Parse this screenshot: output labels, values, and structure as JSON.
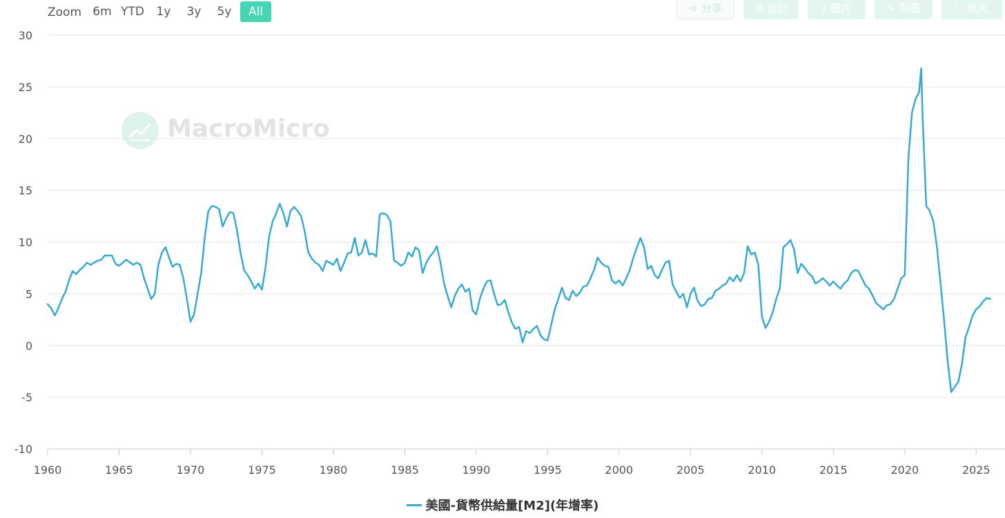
{
  "zoom": {
    "label": "Zoom",
    "buttons": [
      {
        "label": "6m",
        "active": false
      },
      {
        "label": "YTD",
        "active": false
      },
      {
        "label": "1y",
        "active": false
      },
      {
        "label": "3y",
        "active": false
      },
      {
        "label": "5y",
        "active": false
      },
      {
        "label": "All",
        "active": true
      }
    ]
  },
  "toolbar": {
    "share": {
      "label": "分享",
      "icon": "share-icon"
    },
    "customize": {
      "label": "自訂",
      "icon": "gear-icon"
    },
    "image": {
      "label": "圖片",
      "icon": "download-icon"
    },
    "draw": {
      "label": "製圖",
      "icon": "pencil-icon"
    },
    "expand": {
      "label": "放大",
      "icon": "expand-icon"
    }
  },
  "watermark": {
    "text": "MacroMicro"
  },
  "colors": {
    "series": "#36a9d3",
    "accent": "#47d6b3",
    "grid": "#e6e6e6"
  },
  "chart_data": {
    "type": "line",
    "title": "",
    "xlabel": "",
    "ylabel": "",
    "ylim": [
      -10,
      30
    ],
    "xlim": [
      1960,
      2026
    ],
    "yticks": [
      -10,
      -5,
      0,
      5,
      10,
      15,
      20,
      25,
      30
    ],
    "xticks": [
      1960,
      1965,
      1970,
      1975,
      1980,
      1985,
      1990,
      1995,
      2000,
      2005,
      2010,
      2015,
      2020,
      2025
    ],
    "grid": true,
    "legend": "bottom-center",
    "series": [
      {
        "name": "美國-貨幣供給量[M2](年增率)",
        "points": [
          [
            1960.0,
            4.0
          ],
          [
            1960.25,
            3.6
          ],
          [
            1960.5,
            2.9
          ],
          [
            1960.75,
            3.6
          ],
          [
            1961.0,
            4.5
          ],
          [
            1961.25,
            5.2
          ],
          [
            1961.5,
            6.3
          ],
          [
            1961.75,
            7.2
          ],
          [
            1962.0,
            6.9
          ],
          [
            1962.25,
            7.3
          ],
          [
            1962.5,
            7.6
          ],
          [
            1962.75,
            8.0
          ],
          [
            1963.0,
            7.8
          ],
          [
            1963.5,
            8.2
          ],
          [
            1963.75,
            8.3
          ],
          [
            1964.0,
            8.7
          ],
          [
            1964.5,
            8.7
          ],
          [
            1964.75,
            7.9
          ],
          [
            1965.0,
            7.7
          ],
          [
            1965.5,
            8.3
          ],
          [
            1966.0,
            7.8
          ],
          [
            1966.25,
            8.0
          ],
          [
            1966.5,
            7.8
          ],
          [
            1966.75,
            6.5
          ],
          [
            1967.0,
            5.5
          ],
          [
            1967.25,
            4.5
          ],
          [
            1967.5,
            5.0
          ],
          [
            1967.75,
            7.8
          ],
          [
            1968.0,
            9.0
          ],
          [
            1968.25,
            9.5
          ],
          [
            1968.5,
            8.5
          ],
          [
            1968.75,
            7.6
          ],
          [
            1969.0,
            7.9
          ],
          [
            1969.25,
            7.8
          ],
          [
            1969.5,
            6.5
          ],
          [
            1969.75,
            4.5
          ],
          [
            1970.0,
            2.3
          ],
          [
            1970.25,
            3.0
          ],
          [
            1970.5,
            5.0
          ],
          [
            1970.75,
            7.0
          ],
          [
            1971.0,
            10.5
          ],
          [
            1971.25,
            13.0
          ],
          [
            1971.5,
            13.5
          ],
          [
            1971.75,
            13.4
          ],
          [
            1972.0,
            13.2
          ],
          [
            1972.25,
            11.5
          ],
          [
            1972.5,
            12.3
          ],
          [
            1972.75,
            12.9
          ],
          [
            1973.0,
            12.8
          ],
          [
            1973.25,
            11.2
          ],
          [
            1973.5,
            9.0
          ],
          [
            1973.75,
            7.3
          ],
          [
            1974.0,
            6.8
          ],
          [
            1974.25,
            6.2
          ],
          [
            1974.5,
            5.5
          ],
          [
            1974.75,
            6.0
          ],
          [
            1975.0,
            5.4
          ],
          [
            1975.25,
            7.5
          ],
          [
            1975.5,
            10.5
          ],
          [
            1975.75,
            12.0
          ],
          [
            1976.0,
            12.8
          ],
          [
            1976.25,
            13.7
          ],
          [
            1976.5,
            12.8
          ],
          [
            1976.75,
            11.5
          ],
          [
            1977.0,
            13.0
          ],
          [
            1977.25,
            13.4
          ],
          [
            1977.5,
            13.0
          ],
          [
            1977.75,
            12.5
          ],
          [
            1978.0,
            11.0
          ],
          [
            1978.25,
            9.0
          ],
          [
            1978.5,
            8.4
          ],
          [
            1978.75,
            8.0
          ],
          [
            1979.0,
            7.8
          ],
          [
            1979.25,
            7.2
          ],
          [
            1979.5,
            8.2
          ],
          [
            1979.75,
            8.0
          ],
          [
            1980.0,
            7.8
          ],
          [
            1980.25,
            8.4
          ],
          [
            1980.5,
            7.2
          ],
          [
            1980.75,
            8.0
          ],
          [
            1981.0,
            8.9
          ],
          [
            1981.25,
            9.0
          ],
          [
            1981.5,
            10.4
          ],
          [
            1981.75,
            8.7
          ],
          [
            1982.0,
            9.0
          ],
          [
            1982.25,
            10.2
          ],
          [
            1982.5,
            8.8
          ],
          [
            1982.75,
            8.9
          ],
          [
            1983.0,
            8.6
          ],
          [
            1983.25,
            12.7
          ],
          [
            1983.5,
            12.8
          ],
          [
            1983.75,
            12.6
          ],
          [
            1984.0,
            12.0
          ],
          [
            1984.25,
            8.2
          ],
          [
            1984.5,
            8.0
          ],
          [
            1984.75,
            7.7
          ],
          [
            1985.0,
            8.0
          ],
          [
            1985.25,
            9.0
          ],
          [
            1985.5,
            8.6
          ],
          [
            1985.75,
            9.5
          ],
          [
            1986.0,
            9.2
          ],
          [
            1986.25,
            7.0
          ],
          [
            1986.5,
            8.0
          ],
          [
            1986.75,
            8.6
          ],
          [
            1987.0,
            9.0
          ],
          [
            1987.25,
            9.6
          ],
          [
            1987.5,
            8.0
          ],
          [
            1987.75,
            6.0
          ],
          [
            1988.0,
            4.8
          ],
          [
            1988.25,
            3.7
          ],
          [
            1988.5,
            4.8
          ],
          [
            1988.75,
            5.5
          ],
          [
            1989.0,
            5.9
          ],
          [
            1989.25,
            5.2
          ],
          [
            1989.5,
            5.5
          ],
          [
            1989.75,
            3.4
          ],
          [
            1990.0,
            3.0
          ],
          [
            1990.25,
            4.5
          ],
          [
            1990.5,
            5.5
          ],
          [
            1990.75,
            6.2
          ],
          [
            1991.0,
            6.3
          ],
          [
            1991.25,
            5.0
          ],
          [
            1991.5,
            3.9
          ],
          [
            1991.75,
            4.0
          ],
          [
            1992.0,
            4.4
          ],
          [
            1992.25,
            3.2
          ],
          [
            1992.5,
            2.2
          ],
          [
            1992.75,
            1.6
          ],
          [
            1993.0,
            1.8
          ],
          [
            1993.25,
            0.3
          ],
          [
            1993.5,
            1.4
          ],
          [
            1993.75,
            1.2
          ],
          [
            1994.0,
            1.6
          ],
          [
            1994.25,
            1.9
          ],
          [
            1994.5,
            1.0
          ],
          [
            1994.75,
            0.6
          ],
          [
            1995.0,
            0.5
          ],
          [
            1995.25,
            2.0
          ],
          [
            1995.5,
            3.5
          ],
          [
            1995.75,
            4.5
          ],
          [
            1996.0,
            5.6
          ],
          [
            1996.25,
            4.6
          ],
          [
            1996.5,
            4.4
          ],
          [
            1996.75,
            5.3
          ],
          [
            1997.0,
            4.8
          ],
          [
            1997.25,
            5.1
          ],
          [
            1997.5,
            5.7
          ],
          [
            1997.75,
            5.8
          ],
          [
            1998.0,
            6.5
          ],
          [
            1998.25,
            7.3
          ],
          [
            1998.5,
            8.5
          ],
          [
            1998.75,
            8.0
          ],
          [
            1999.0,
            7.7
          ],
          [
            1999.25,
            7.6
          ],
          [
            1999.5,
            6.3
          ],
          [
            1999.75,
            6.0
          ],
          [
            2000.0,
            6.3
          ],
          [
            2000.25,
            5.8
          ],
          [
            2000.5,
            6.5
          ],
          [
            2000.75,
            7.3
          ],
          [
            2001.0,
            8.5
          ],
          [
            2001.25,
            9.5
          ],
          [
            2001.5,
            10.4
          ],
          [
            2001.75,
            9.5
          ],
          [
            2002.0,
            7.4
          ],
          [
            2002.25,
            7.7
          ],
          [
            2002.5,
            6.8
          ],
          [
            2002.75,
            6.5
          ],
          [
            2003.0,
            7.3
          ],
          [
            2003.25,
            8.0
          ],
          [
            2003.5,
            8.2
          ],
          [
            2003.75,
            5.9
          ],
          [
            2004.0,
            5.2
          ],
          [
            2004.25,
            4.6
          ],
          [
            2004.5,
            5.0
          ],
          [
            2004.75,
            3.7
          ],
          [
            2005.0,
            5.0
          ],
          [
            2005.25,
            5.6
          ],
          [
            2005.5,
            4.3
          ],
          [
            2005.75,
            3.8
          ],
          [
            2006.0,
            4.0
          ],
          [
            2006.25,
            4.5
          ],
          [
            2006.5,
            4.6
          ],
          [
            2006.75,
            5.3
          ],
          [
            2007.0,
            5.5
          ],
          [
            2007.25,
            5.8
          ],
          [
            2007.5,
            6.0
          ],
          [
            2007.75,
            6.6
          ],
          [
            2008.0,
            6.2
          ],
          [
            2008.25,
            6.8
          ],
          [
            2008.5,
            6.2
          ],
          [
            2008.75,
            7.0
          ],
          [
            2009.0,
            9.6
          ],
          [
            2009.25,
            8.8
          ],
          [
            2009.5,
            9.0
          ],
          [
            2009.75,
            7.8
          ],
          [
            2010.0,
            2.8
          ],
          [
            2010.25,
            1.7
          ],
          [
            2010.5,
            2.3
          ],
          [
            2010.75,
            3.2
          ],
          [
            2011.0,
            4.5
          ],
          [
            2011.25,
            5.5
          ],
          [
            2011.5,
            9.5
          ],
          [
            2011.75,
            9.8
          ],
          [
            2012.0,
            10.2
          ],
          [
            2012.25,
            9.3
          ],
          [
            2012.5,
            7.0
          ],
          [
            2012.75,
            7.9
          ],
          [
            2013.0,
            7.5
          ],
          [
            2013.25,
            7.0
          ],
          [
            2013.5,
            6.7
          ],
          [
            2013.75,
            6.0
          ],
          [
            2014.0,
            6.2
          ],
          [
            2014.25,
            6.5
          ],
          [
            2014.5,
            6.2
          ],
          [
            2014.75,
            5.8
          ],
          [
            2015.0,
            6.2
          ],
          [
            2015.25,
            5.8
          ],
          [
            2015.5,
            5.5
          ],
          [
            2015.75,
            6.0
          ],
          [
            2016.0,
            6.3
          ],
          [
            2016.25,
            7.0
          ],
          [
            2016.5,
            7.3
          ],
          [
            2016.75,
            7.2
          ],
          [
            2017.0,
            6.5
          ],
          [
            2017.25,
            5.8
          ],
          [
            2017.5,
            5.5
          ],
          [
            2017.75,
            4.8
          ],
          [
            2018.0,
            4.1
          ],
          [
            2018.25,
            3.8
          ],
          [
            2018.5,
            3.5
          ],
          [
            2018.75,
            3.9
          ],
          [
            2019.0,
            4.0
          ],
          [
            2019.25,
            4.5
          ],
          [
            2019.5,
            5.5
          ],
          [
            2019.75,
            6.5
          ],
          [
            2020.0,
            6.8
          ],
          [
            2020.25,
            18.0
          ],
          [
            2020.5,
            22.5
          ],
          [
            2020.75,
            23.8
          ],
          [
            2021.0,
            24.5
          ],
          [
            2021.15,
            26.8
          ],
          [
            2021.25,
            22.0
          ],
          [
            2021.5,
            13.5
          ],
          [
            2021.75,
            13.0
          ],
          [
            2022.0,
            12.0
          ],
          [
            2022.25,
            9.5
          ],
          [
            2022.5,
            6.0
          ],
          [
            2022.75,
            2.5
          ],
          [
            2023.0,
            -1.5
          ],
          [
            2023.25,
            -4.5
          ],
          [
            2023.5,
            -4.0
          ],
          [
            2023.75,
            -3.5
          ],
          [
            2024.0,
            -1.8
          ],
          [
            2024.25,
            0.8
          ],
          [
            2024.5,
            1.8
          ],
          [
            2024.75,
            2.9
          ],
          [
            2025.0,
            3.5
          ],
          [
            2025.25,
            3.8
          ],
          [
            2025.5,
            4.3
          ],
          [
            2025.75,
            4.6
          ],
          [
            2026.0,
            4.5
          ]
        ]
      }
    ]
  }
}
